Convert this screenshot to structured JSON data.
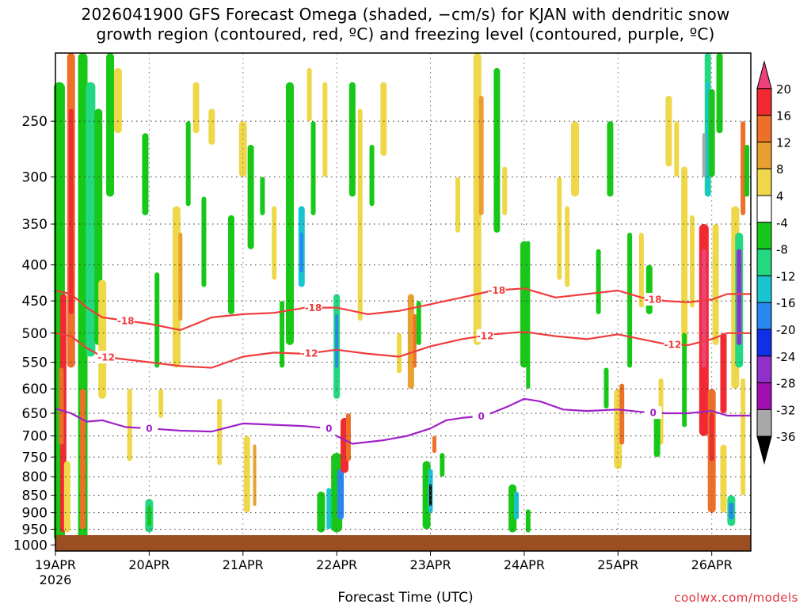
{
  "title_line1": "2026041900 GFS Forecast Omega (shaded, −cm/s) for KJAN with dendritic snow",
  "title_line2": "growth region (contoured, red, ºC) and freezing level (contoured, purple, ºC)",
  "credit": "coolwx.com/models",
  "chart_data": {
    "type": "heatmap",
    "title": "2026041900 GFS Forecast Omega (shaded, −cm/s) for KJAN with dendritic snow growth region (contoured, red, ºC) and freezing level (contoured, purple, ºC)",
    "xlabel": "Forecast Time (UTC)",
    "ylabel": "",
    "x_unit": "forecast hour",
    "xlim": [
      0,
      178
    ],
    "ylim": [
      1020,
      200
    ],
    "y_scale": "log-pressure (hPa)",
    "x_ticks": [
      {
        "hour": 0,
        "label": "19APR",
        "sublabel": "2026"
      },
      {
        "hour": 24,
        "label": "20APR"
      },
      {
        "hour": 48,
        "label": "21APR"
      },
      {
        "hour": 72,
        "label": "22APR"
      },
      {
        "hour": 96,
        "label": "23APR"
      },
      {
        "hour": 120,
        "label": "24APR"
      },
      {
        "hour": 144,
        "label": "25APR"
      },
      {
        "hour": 168,
        "label": "26APR"
      }
    ],
    "y_ticks": [
      250,
      300,
      350,
      400,
      450,
      500,
      550,
      600,
      650,
      700,
      750,
      800,
      850,
      900,
      950,
      1000
    ],
    "grid": true,
    "colorbar": {
      "labels": [
        20,
        16,
        12,
        8,
        4,
        -4,
        -8,
        -12,
        -16,
        -20,
        -24,
        -28,
        -32,
        -36
      ],
      "colors": [
        "#f0407a",
        "#f02a30",
        "#ee7028",
        "#e8a030",
        "#eed84a",
        "#ffffff",
        "#18c818",
        "#22d880",
        "#18c4d0",
        "#2888f0",
        "#1030e8",
        "#9030c8",
        "#a010b0",
        "#a8a8a8",
        "#000000"
      ]
    },
    "freezing_level": {
      "label": "0",
      "color": "#a020c8",
      "hours": [
        0,
        4,
        8,
        12,
        18,
        24,
        32,
        40,
        48,
        56,
        64,
        70,
        72,
        76,
        84,
        90,
        96,
        100,
        104,
        110,
        116,
        120,
        124,
        130,
        136,
        144,
        150,
        156,
        162,
        168,
        172,
        178
      ],
      "pressure": [
        640,
        650,
        668,
        665,
        680,
        683,
        688,
        690,
        672,
        675,
        678,
        683,
        700,
        718,
        710,
        700,
        683,
        665,
        660,
        655,
        635,
        620,
        625,
        642,
        645,
        642,
        647,
        650,
        650,
        645,
        655,
        655
      ]
    },
    "isotherm_minus12": {
      "label": "-12",
      "color": "#f03c3c",
      "hours": [
        0,
        4,
        8,
        12,
        18,
        24,
        32,
        40,
        48,
        56,
        64,
        72,
        80,
        88,
        96,
        104,
        112,
        120,
        128,
        136,
        144,
        150,
        156,
        162,
        168,
        172,
        178
      ],
      "pressure": [
        500,
        505,
        525,
        540,
        545,
        550,
        557,
        560,
        540,
        533,
        535,
        528,
        535,
        540,
        522,
        510,
        502,
        498,
        505,
        510,
        502,
        510,
        518,
        520,
        510,
        500,
        500
      ]
    },
    "isotherm_minus18": {
      "label": "-18",
      "color": "#f03c3c",
      "hours": [
        0,
        4,
        8,
        12,
        18,
        24,
        32,
        36,
        40,
        48,
        56,
        64,
        72,
        80,
        88,
        96,
        104,
        112,
        120,
        128,
        136,
        144,
        150,
        156,
        162,
        168,
        172,
        178
      ],
      "pressure": [
        435,
        440,
        460,
        475,
        480,
        485,
        495,
        485,
        475,
        470,
        468,
        460,
        460,
        470,
        465,
        455,
        445,
        435,
        432,
        445,
        440,
        435,
        445,
        450,
        452,
        448,
        440,
        440
      ]
    },
    "features": [
      {
        "name": "thin-snow-crystal-regions",
        "note": "shaded omega field"
      }
    ]
  }
}
